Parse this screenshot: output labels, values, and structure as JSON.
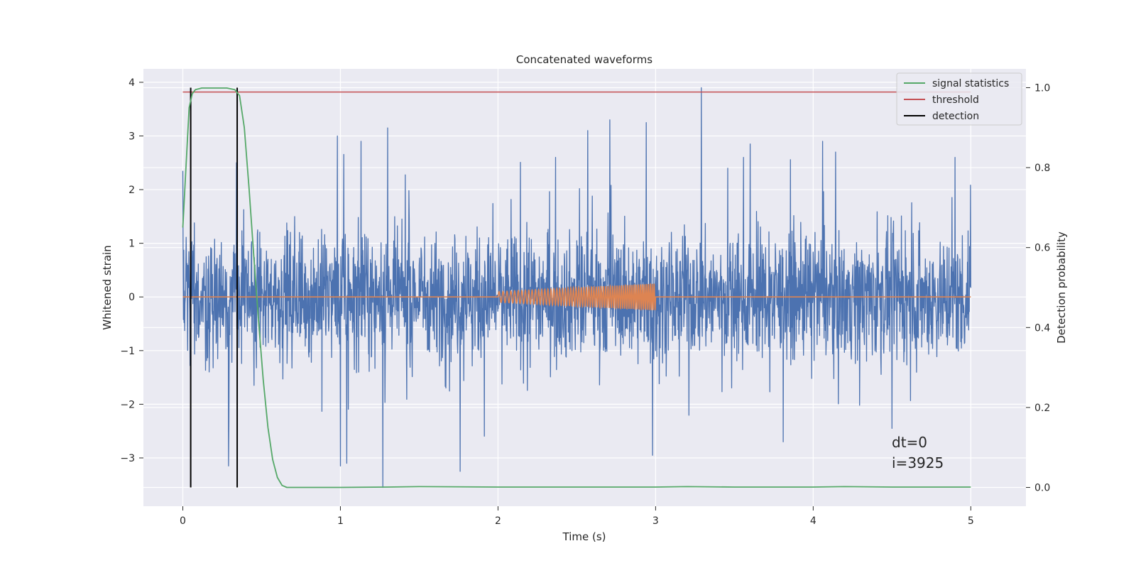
{
  "chart_data": {
    "type": "line",
    "title": "Concatenated waveforms",
    "xlabel": "Time (s)",
    "ylabel": "Whitened strain",
    "y2label": "Detection probability",
    "xlim": [
      -0.25,
      5.35
    ],
    "ylim": [
      -3.9,
      4.25
    ],
    "y2lim": [
      -0.047,
      1.047
    ],
    "xticks": [
      0,
      1,
      2,
      3,
      4,
      5
    ],
    "yticks": [
      -3,
      -2,
      -1,
      0,
      1,
      2,
      3,
      4
    ],
    "y2ticks": [
      0.0,
      0.2,
      0.4,
      0.6,
      0.8,
      1.0
    ],
    "grid": true,
    "legend_position": "top-right",
    "colors": {
      "strain": "#4c72b0",
      "injection": "#dd8452",
      "signal_statistics": "#55a868",
      "threshold": "#c44e52",
      "detection": "#000000",
      "background": "#eaeaf2",
      "grid": "#ffffff"
    },
    "series": [
      {
        "name": "signal statistics",
        "axis": "right",
        "x": [
          0.0,
          0.02,
          0.04,
          0.06,
          0.08,
          0.12,
          0.2,
          0.28,
          0.33,
          0.36,
          0.39,
          0.42,
          0.45,
          0.48,
          0.51,
          0.54,
          0.57,
          0.6,
          0.63,
          0.66,
          0.8,
          1.0,
          1.3,
          1.5,
          2.0,
          2.5,
          3.0,
          3.2,
          3.5,
          4.0,
          4.2,
          4.5,
          5.0
        ],
        "y": [
          0.65,
          0.8,
          0.95,
          0.985,
          0.995,
          0.999,
          0.999,
          0.999,
          0.995,
          0.98,
          0.9,
          0.75,
          0.58,
          0.42,
          0.27,
          0.15,
          0.07,
          0.025,
          0.005,
          0.0,
          0.0,
          0.0,
          0.001,
          0.002,
          0.001,
          0.001,
          0.001,
          0.002,
          0.001,
          0.001,
          0.002,
          0.001,
          0.001
        ]
      },
      {
        "name": "threshold",
        "axis": "right",
        "x": [
          0.0,
          5.0
        ],
        "y": [
          0.989,
          0.989
        ]
      },
      {
        "name": "detection",
        "axis": "right",
        "x_positions": [
          0.05,
          0.345
        ],
        "y_range": [
          0.0,
          1.0
        ]
      },
      {
        "name": "",
        "axis": "left",
        "description_type": "whitened noise",
        "x_range": [
          0.0,
          5.0
        ],
        "amplitude_rms": 0.9,
        "peaks": [
          {
            "x": 0.0,
            "y": 2.35
          },
          {
            "x": 0.05,
            "y": -1.8
          },
          {
            "x": 0.29,
            "y": -3.15
          },
          {
            "x": 0.34,
            "y": 2.5
          },
          {
            "x": 0.98,
            "y": 3.0
          },
          {
            "x": 1.0,
            "y": -3.15
          },
          {
            "x": 1.04,
            "y": -3.1
          },
          {
            "x": 1.13,
            "y": 2.9
          },
          {
            "x": 1.27,
            "y": -3.55
          },
          {
            "x": 1.3,
            "y": 3.15
          },
          {
            "x": 1.76,
            "y": -3.25
          },
          {
            "x": 2.57,
            "y": 3.1
          },
          {
            "x": 2.71,
            "y": 3.3
          },
          {
            "x": 2.94,
            "y": 3.25
          },
          {
            "x": 2.98,
            "y": -2.95
          },
          {
            "x": 3.29,
            "y": 3.9
          },
          {
            "x": 3.6,
            "y": 2.85
          },
          {
            "x": 3.81,
            "y": -2.7
          },
          {
            "x": 4.06,
            "y": 2.9
          },
          {
            "x": 4.5,
            "y": -2.45
          },
          {
            "x": 4.9,
            "y": 2.6
          }
        ]
      },
      {
        "name": "",
        "axis": "left",
        "description_type": "chirp",
        "x_range": [
          2.0,
          3.0
        ],
        "amplitude_start": 0.1,
        "amplitude_end": 0.25,
        "baseline": 0.0
      }
    ],
    "legend": [
      "signal statistics",
      "threshold",
      "detection"
    ],
    "annotations": [
      "dt=0",
      "i=3925"
    ]
  }
}
